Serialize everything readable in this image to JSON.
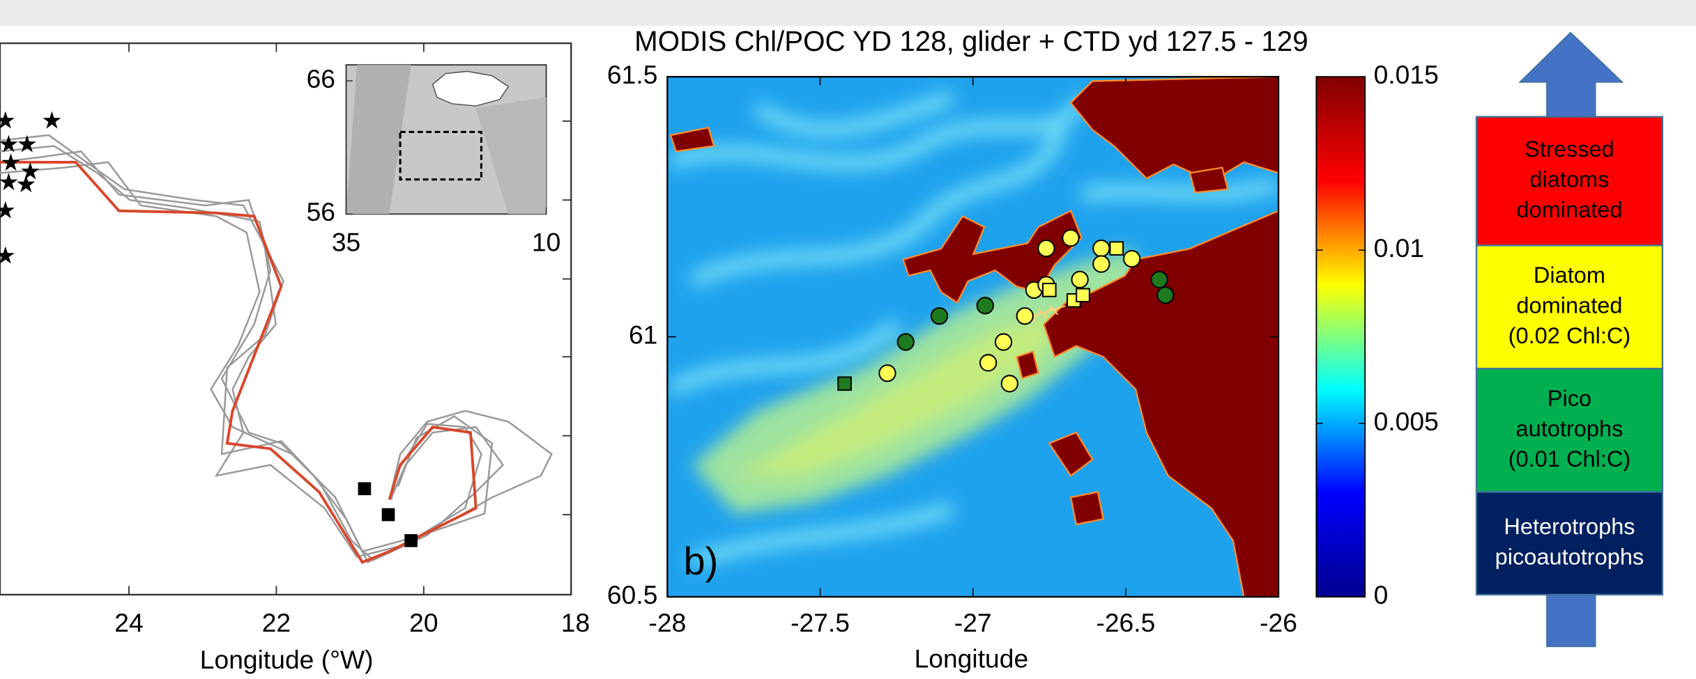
{
  "chart_data": [
    {
      "type": "map",
      "xlabel": "Longitude (°W)",
      "xlim": [
        25.75,
        18
      ],
      "xticks": [
        24,
        22,
        20,
        18
      ],
      "inset": {
        "xlim": [
          35,
          10
        ],
        "xticks": [
          35,
          10
        ],
        "ylim": [
          56,
          67.2
        ],
        "yticks": [
          56,
          66
        ]
      }
    },
    {
      "type": "scatter",
      "title": "MODIS Chl/POC YD 128, glider + CTD yd 127.5 - 129",
      "xlabel": "Longitude",
      "panel_label": "b)",
      "xlim": [
        -28,
        -26
      ],
      "ylim": [
        60.5,
        61.5
      ],
      "xticks": [
        -28,
        -27.5,
        -27,
        -26.5,
        -26
      ],
      "yticks": [
        60.5,
        61,
        61.5
      ],
      "series": [
        {
          "color": "#ffff55",
          "marker": "circle",
          "x": [
            -27.28,
            -26.95,
            -26.88,
            -26.9,
            -26.83,
            -26.8,
            -26.76,
            -26.76,
            -26.68,
            -26.58,
            -26.48,
            -26.58,
            -26.65
          ],
          "values": [
            60.93,
            60.95,
            60.91,
            60.99,
            61.04,
            61.09,
            61.1,
            61.17,
            61.19,
            61.17,
            61.15,
            61.14,
            61.11
          ]
        },
        {
          "color": "#1e7a1e",
          "marker": "circle",
          "x": [
            -27.22,
            -27.11,
            -26.96,
            -26.39,
            -26.37
          ],
          "values": [
            60.99,
            61.04,
            61.06,
            61.11,
            61.08
          ]
        },
        {
          "color": "#1e7a1e",
          "marker": "square",
          "x": [
            -27.42
          ],
          "values": [
            60.91
          ]
        },
        {
          "color": "#ffff55",
          "marker": "square",
          "x": [
            -26.75,
            -26.67,
            -26.64,
            -26.53
          ],
          "values": [
            61.09,
            61.07,
            61.08,
            61.17
          ]
        }
      ],
      "colorbar": {
        "lim": [
          0,
          0.015
        ],
        "ticks": [
          0,
          0.005,
          0.01,
          0.015
        ],
        "colors": [
          "#00008f",
          "#0000ff",
          "#00ffff",
          "#ffff00",
          "#ff0000",
          "#800000"
        ]
      }
    }
  ],
  "legend_diagram": {
    "boxes": [
      {
        "lines": [
          "Stressed",
          "diatoms",
          "dominated"
        ],
        "color": "#ff0000",
        "text_color": "#000000"
      },
      {
        "lines": [
          "Diatom",
          "dominated",
          "(0.02 Chl:C)"
        ],
        "color": "#ffff00",
        "text_color": "#000000"
      },
      {
        "lines": [
          "Pico",
          "autotrophs",
          "(0.01 Chl:C)"
        ],
        "color": "#00b050",
        "text_color": "#000000"
      },
      {
        "lines": [
          "Heterotrophs",
          "picoautotrophs"
        ],
        "color": "#002060",
        "text_color": "#ffffff"
      }
    ]
  }
}
